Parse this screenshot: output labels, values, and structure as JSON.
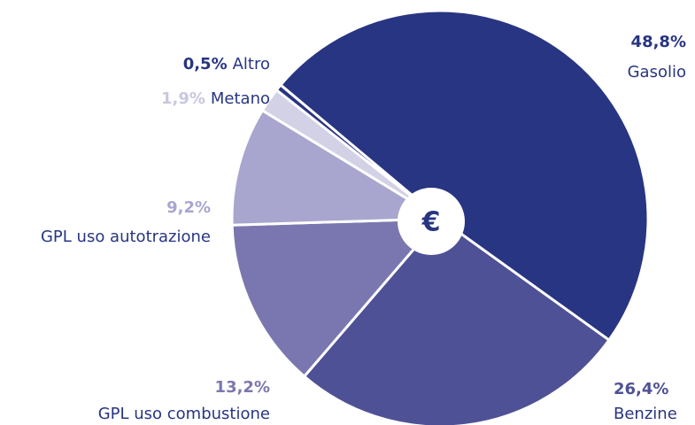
{
  "chart_data": {
    "type": "pie",
    "categories": [
      "Gasolio",
      "Benzine",
      "GPL uso combustione",
      "GPL uso autotrazione",
      "Metano",
      "Altro"
    ],
    "values": [
      48.8,
      26.4,
      13.2,
      9.2,
      1.9,
      0.5
    ],
    "value_labels": [
      "48,8%",
      "26,4%",
      "13,2%",
      "9,2%",
      "1,9%",
      "0,5%"
    ],
    "colors": [
      "#283582",
      "#4f5196",
      "#7a77b0",
      "#a8a6cf",
      "#d2d1e6",
      "#283582"
    ],
    "center_label": "€"
  }
}
